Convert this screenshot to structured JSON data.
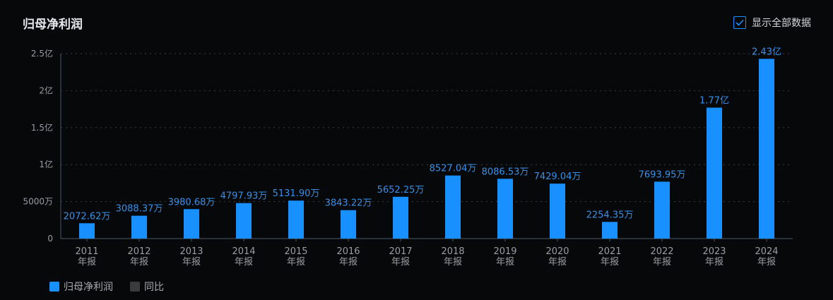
{
  "header": {
    "title": "归母净利润"
  },
  "toggle": {
    "label": "显示全部数据",
    "checked": true,
    "icon": "check-icon"
  },
  "legend": [
    {
      "label": "归母净利润",
      "color": "#1890ff"
    },
    {
      "label": "同比",
      "color": "#3a3b3d"
    }
  ],
  "colors": {
    "bar": "#1890ff",
    "label": "#3a8fe6",
    "axis": "#9a9da3",
    "grid": "#3a3d42",
    "baseline": "#4a5a6a"
  },
  "chart_data": {
    "type": "bar",
    "title": "归母净利润",
    "categories": [
      "2011\n年报",
      "2012\n年报",
      "2013\n年报",
      "2014\n年报",
      "2015\n年报",
      "2016\n年报",
      "2017\n年报",
      "2018\n年报",
      "2019\n年报",
      "2020\n年报",
      "2021\n年报",
      "2022\n年报",
      "2023\n年报",
      "2024\n年报"
    ],
    "values": [
      20726200,
      30883700,
      39806800,
      47979300,
      51319000,
      38432200,
      56522500,
      85270400,
      80865300,
      74290400,
      22543500,
      76939500,
      177000000,
      243000000
    ],
    "data_labels": [
      "2072.62万",
      "3088.37万",
      "3980.68万",
      "4797.93万",
      "5131.90万",
      "3843.22万",
      "5652.25万",
      "8527.04万",
      "8086.53万",
      "7429.04万",
      "2254.35万",
      "7693.95万",
      "1.77亿",
      "2.43亿"
    ],
    "ylim": [
      0,
      250000000
    ],
    "yticks": [
      0,
      50000000,
      100000000,
      150000000,
      200000000,
      250000000
    ],
    "ytick_labels": [
      "0",
      "5000万",
      "1亿",
      "1.5亿",
      "2亿",
      "2.5亿"
    ],
    "grid": true,
    "legend_position": "bottom-left"
  }
}
